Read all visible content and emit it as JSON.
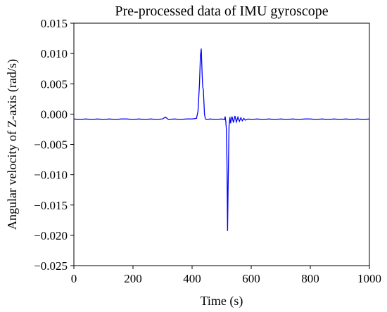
{
  "chart_data": {
    "type": "line",
    "title": "Pre-processed data of IMU gyroscope",
    "xlabel": "Time (s)",
    "ylabel": "Angular velocity of Z-axis (rad/s)",
    "xlim": [
      0,
      1000
    ],
    "ylim": [
      -0.025,
      0.015
    ],
    "xticks": [
      0,
      200,
      400,
      600,
      800,
      1000
    ],
    "xtick_labels": [
      "0",
      "200",
      "400",
      "600",
      "800",
      "1000"
    ],
    "yticks": [
      0.015,
      0.01,
      0.005,
      0.0,
      -0.005,
      -0.01,
      -0.015,
      -0.02,
      -0.025
    ],
    "ytick_labels": [
      "0.015",
      "0.010",
      "0.005",
      "0.000",
      "−0.005",
      "−0.010",
      "−0.015",
      "−0.020",
      "−0.025"
    ],
    "grid": false,
    "legend": "none",
    "series": [
      {
        "color": "#0000ff",
        "x": [
          0,
          20,
          40,
          60,
          80,
          100,
          120,
          140,
          160,
          180,
          200,
          220,
          240,
          260,
          280,
          300,
          310,
          315,
          320,
          340,
          360,
          380,
          400,
          415,
          420,
          425,
          428,
          431,
          434,
          436,
          438,
          440,
          442,
          445,
          450,
          460,
          480,
          500,
          510,
          512,
          514,
          516,
          518,
          520,
          522,
          525,
          528,
          530,
          535,
          540,
          545,
          550,
          555,
          560,
          565,
          570,
          575,
          580,
          590,
          600,
          620,
          640,
          660,
          680,
          700,
          720,
          740,
          760,
          780,
          800,
          820,
          840,
          860,
          880,
          900,
          920,
          940,
          960,
          980,
          1000
        ],
        "y": [
          -0.0008,
          -0.0009,
          -0.0008,
          -0.0009,
          -0.0008,
          -0.0009,
          -0.0008,
          -0.0009,
          -0.0008,
          -0.0008,
          -0.0009,
          -0.0008,
          -0.0009,
          -0.0008,
          -0.0009,
          -0.0008,
          -0.0005,
          -0.0007,
          -0.0009,
          -0.0008,
          -0.0009,
          -0.0008,
          -0.0008,
          -0.0007,
          0.0005,
          0.005,
          0.0095,
          0.0108,
          0.0065,
          0.0045,
          0.004,
          0.002,
          0.0,
          -0.0008,
          -0.0009,
          -0.0008,
          -0.0009,
          -0.0008,
          -0.0009,
          -0.0004,
          -0.0012,
          -0.0025,
          -0.008,
          -0.0193,
          -0.012,
          -0.002,
          -0.0005,
          -0.0015,
          -0.0004,
          -0.0014,
          -0.0003,
          -0.0013,
          -0.0005,
          -0.0012,
          -0.0006,
          -0.0011,
          -0.0007,
          -0.001,
          -0.0008,
          -0.0009,
          -0.0008,
          -0.0009,
          -0.0008,
          -0.0009,
          -0.0008,
          -0.0009,
          -0.0008,
          -0.0009,
          -0.0008,
          -0.0008,
          -0.0009,
          -0.0008,
          -0.0009,
          -0.0008,
          -0.0009,
          -0.0008,
          -0.0009,
          -0.0008,
          -0.0009,
          -0.0008
        ]
      }
    ]
  }
}
